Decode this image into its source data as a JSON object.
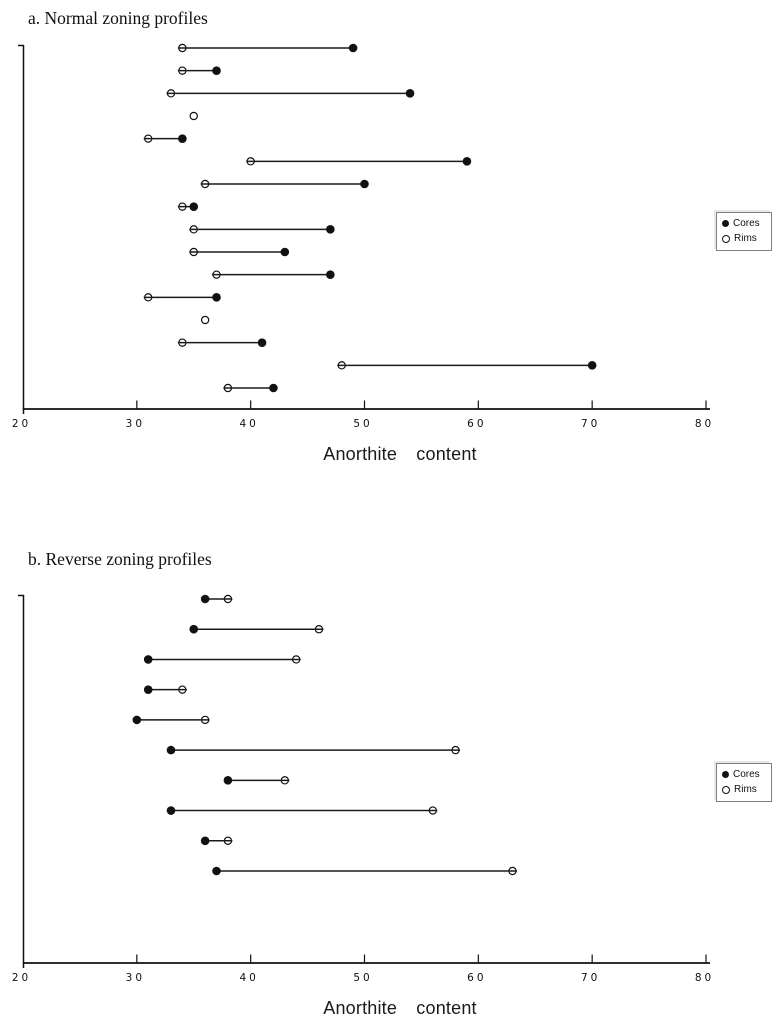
{
  "page": {
    "background": "#ffffff",
    "ink_color": "#111111"
  },
  "chart_data": [
    {
      "type": "dumbbell",
      "title": "a. Normal zoning profiles",
      "xlabel": "Anorthite content",
      "xlim": [
        20,
        80
      ],
      "xticks": [
        "20",
        "30",
        "40",
        "50",
        "60",
        "70",
        "80"
      ],
      "grid": false,
      "legend_position": "right-outside",
      "legend": [
        {
          "label": "Cores",
          "marker": "filled-circle"
        },
        {
          "label": "Rims",
          "marker": "open-circle"
        }
      ],
      "rows": [
        {
          "rim": 34,
          "core": 49
        },
        {
          "rim": 34,
          "core": 37
        },
        {
          "rim": 33,
          "core": 54
        },
        {
          "rim": 35,
          "core": null
        },
        {
          "rim": 31,
          "core": 34
        },
        {
          "rim": 40,
          "core": 59
        },
        {
          "rim": 36,
          "core": 50
        },
        {
          "rim": 34,
          "core": 35
        },
        {
          "rim": 35,
          "core": 47
        },
        {
          "rim": 35,
          "core": 43
        },
        {
          "rim": 37,
          "core": 47
        },
        {
          "rim": 31,
          "core": 37
        },
        {
          "rim": 36,
          "core": null
        },
        {
          "rim": 34,
          "core": 41
        },
        {
          "rim": 48,
          "core": 70
        },
        {
          "rim": 38,
          "core": 42
        }
      ]
    },
    {
      "type": "dumbbell",
      "title": "b. Reverse zoning profiles",
      "xlabel": "Anorthite content",
      "xlim": [
        20,
        80
      ],
      "xticks": [
        "20",
        "30",
        "40",
        "50",
        "60",
        "70",
        "80"
      ],
      "grid": false,
      "legend_position": "right-outside",
      "legend": [
        {
          "label": "Cores",
          "marker": "filled-circle"
        },
        {
          "label": "Rims",
          "marker": "open-circle"
        }
      ],
      "rows": [
        {
          "core": 36,
          "rim": 38
        },
        {
          "core": 35,
          "rim": 46
        },
        {
          "core": 31,
          "rim": 44
        },
        {
          "core": 31,
          "rim": 34
        },
        {
          "core": 30,
          "rim": 36
        },
        {
          "core": 33,
          "rim": 58
        },
        {
          "core": 38,
          "rim": 43
        },
        {
          "core": 33,
          "rim": 56
        },
        {
          "core": 36,
          "rim": 38
        },
        {
          "core": 37,
          "rim": 63
        }
      ]
    }
  ]
}
